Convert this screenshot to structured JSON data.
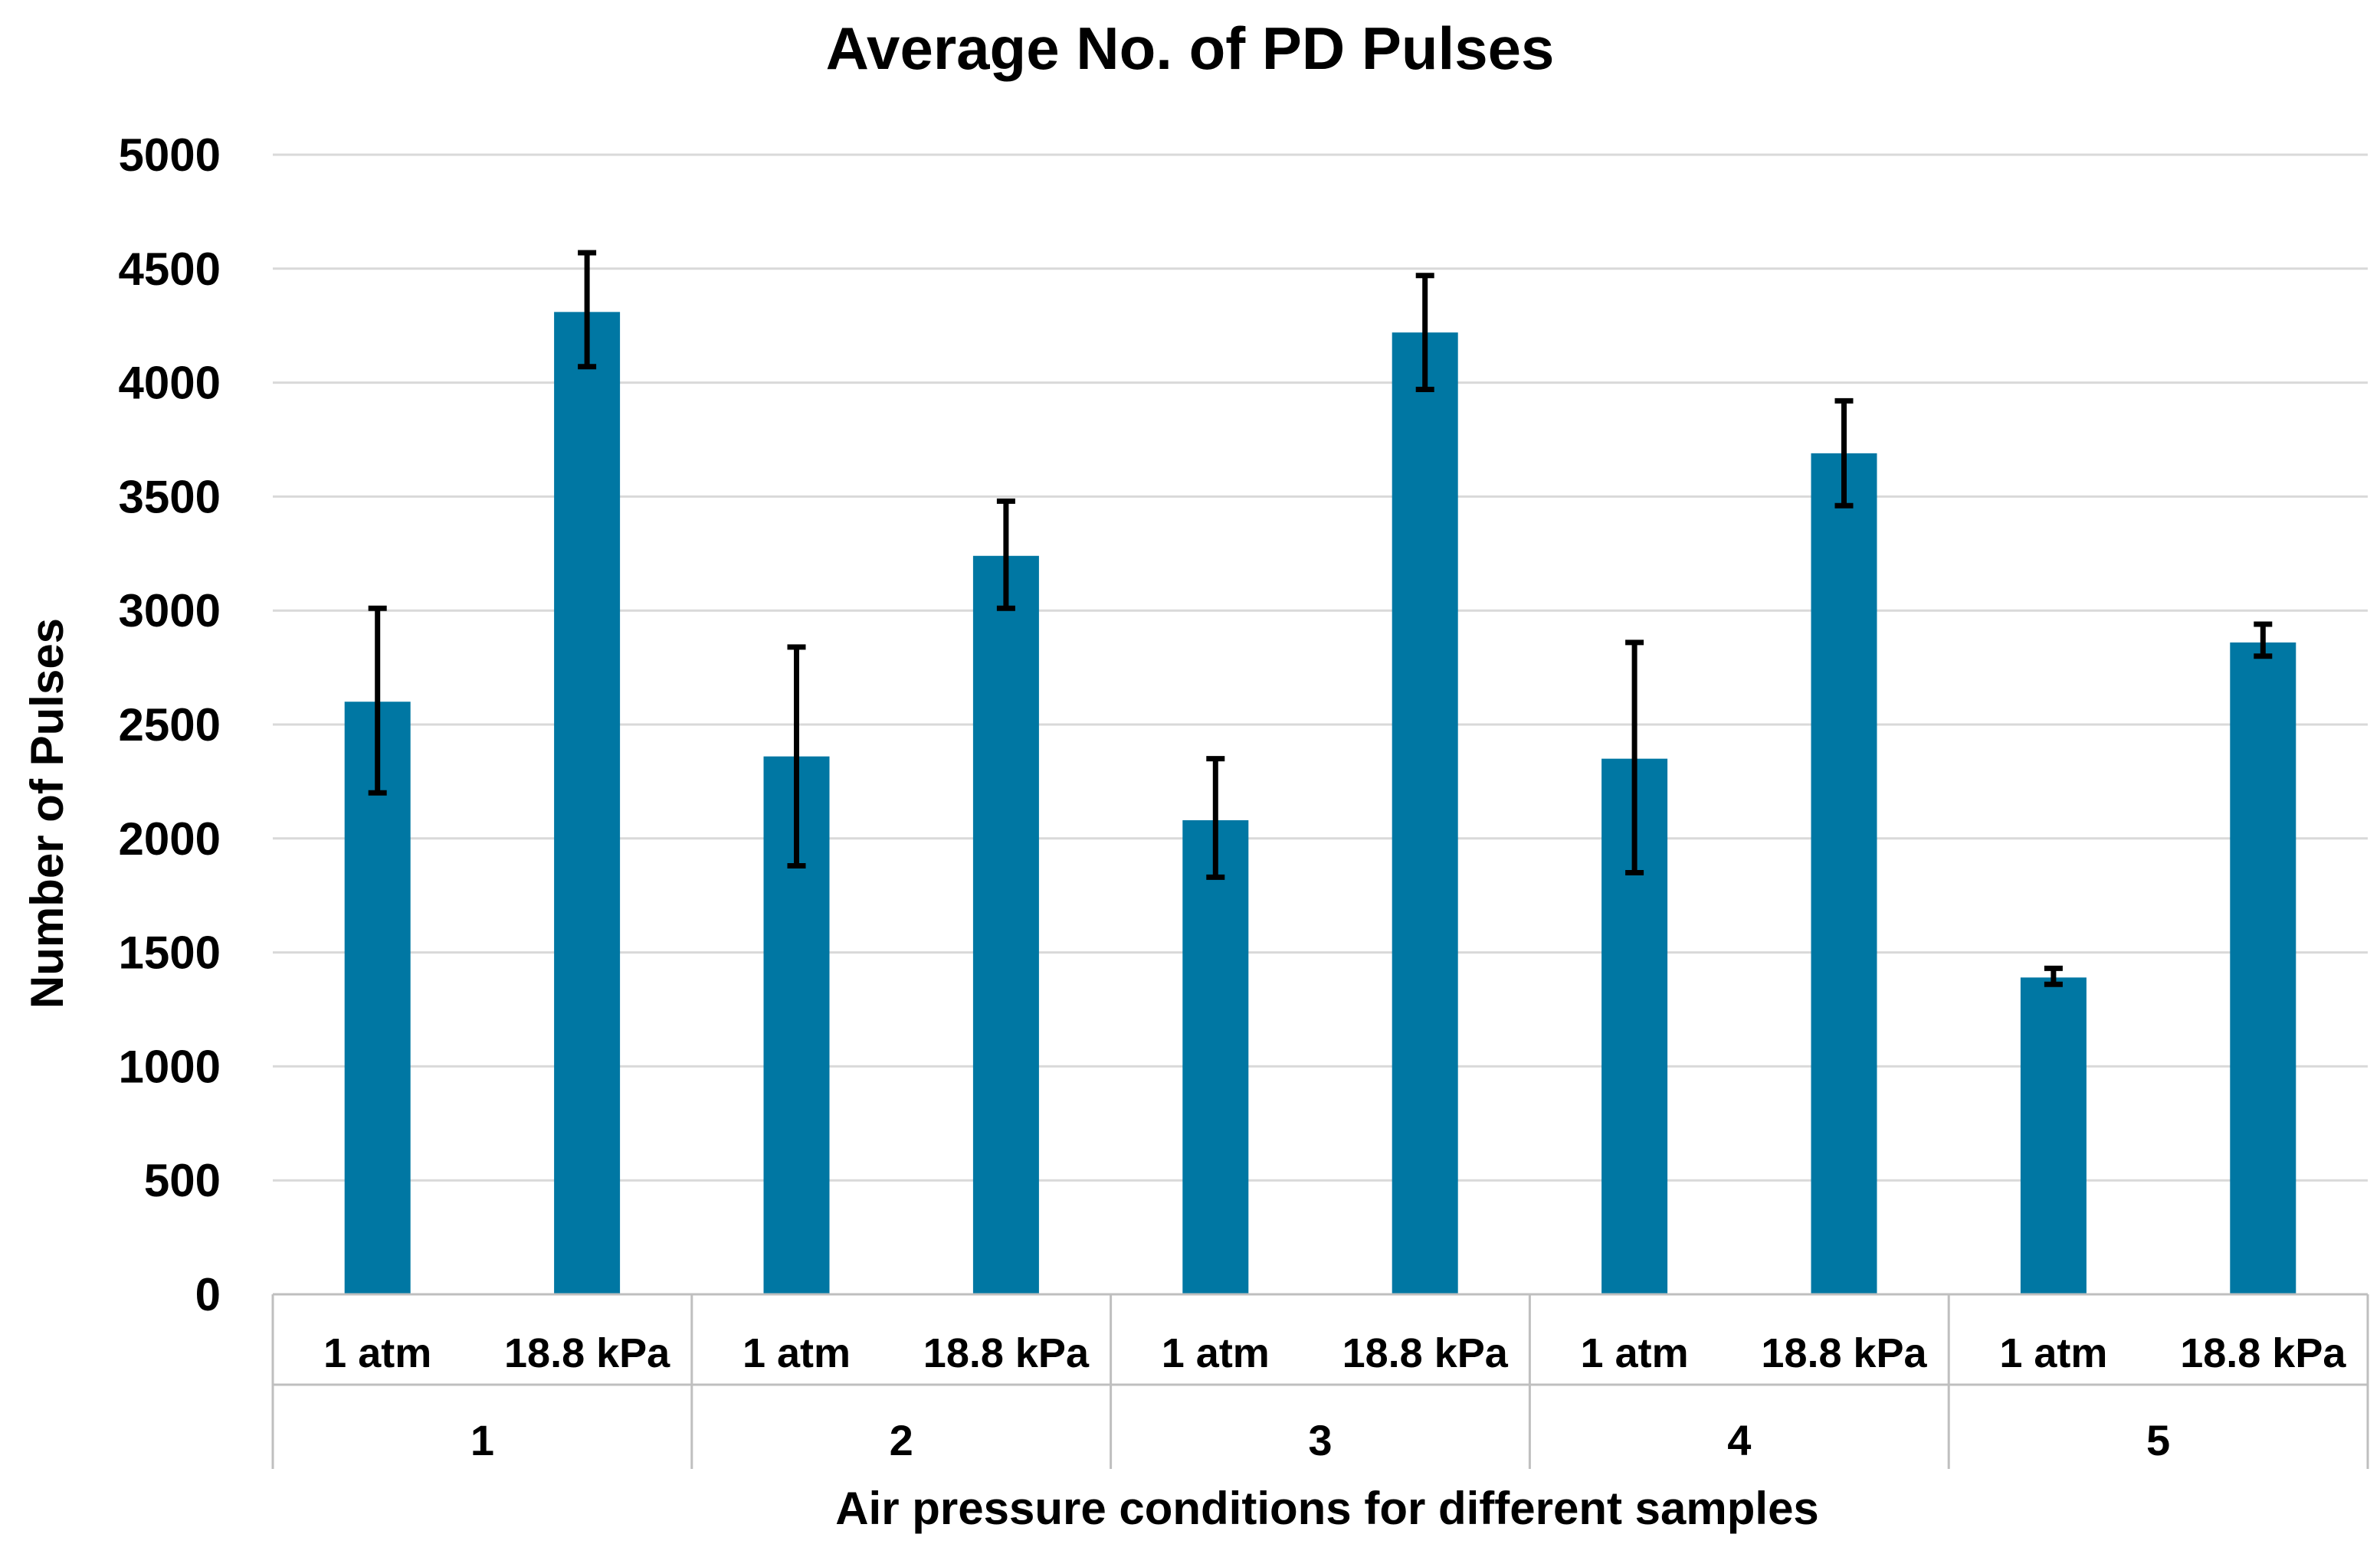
{
  "chart_data": {
    "type": "bar",
    "title": "Average No. of PD Pulses",
    "xlabel": "Air pressure conditions for different samples",
    "ylabel": "Number of Pulses",
    "ylim": [
      0,
      5000
    ],
    "yticks": [
      0,
      500,
      1000,
      1500,
      2000,
      2500,
      3000,
      3500,
      4000,
      4500,
      5000
    ],
    "ytick_labels": [
      "0",
      "500",
      "1000",
      "1500",
      "2000",
      "2500",
      "3000",
      "3500",
      "4000",
      "4500",
      "5000"
    ],
    "grid": true,
    "legend": "none",
    "colors": {
      "bar": "#0077A3",
      "error": "#000000",
      "grid": "#d9d9d9",
      "axis": "#bfbfbf"
    },
    "groups": [
      {
        "label": "1",
        "bars": [
          {
            "category": "1 atm",
            "value": 2600,
            "error_low": 2200,
            "error_high": 3010
          },
          {
            "category": "18.8 kPa",
            "value": 4310,
            "error_low": 4070,
            "error_high": 4570
          }
        ]
      },
      {
        "label": "2",
        "bars": [
          {
            "category": "1 atm",
            "value": 2360,
            "error_low": 1880,
            "error_high": 2840
          },
          {
            "category": "18.8 kPa",
            "value": 3240,
            "error_low": 3010,
            "error_high": 3480
          }
        ]
      },
      {
        "label": "3",
        "bars": [
          {
            "category": "1 atm",
            "value": 2080,
            "error_low": 1830,
            "error_high": 2350
          },
          {
            "category": "18.8 kPa",
            "value": 4220,
            "error_low": 3970,
            "error_high": 4470
          }
        ]
      },
      {
        "label": "4",
        "bars": [
          {
            "category": "1 atm",
            "value": 2350,
            "error_low": 1850,
            "error_high": 2860
          },
          {
            "category": "18.8 kPa",
            "value": 3690,
            "error_low": 3460,
            "error_high": 3920
          }
        ]
      },
      {
        "label": "5",
        "bars": [
          {
            "category": "1 atm",
            "value": 1390,
            "error_low": 1360,
            "error_high": 1430
          },
          {
            "category": "18.8 kPa",
            "value": 2860,
            "error_low": 2800,
            "error_high": 2940
          }
        ]
      }
    ]
  }
}
